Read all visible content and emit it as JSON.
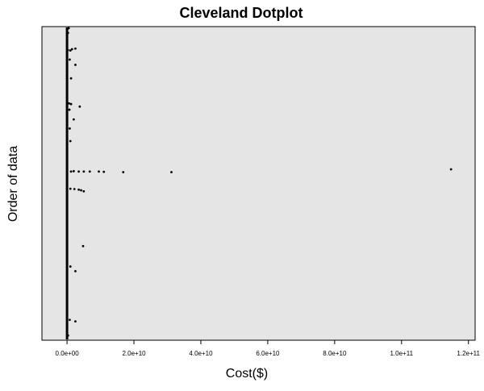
{
  "chart_data": {
    "type": "scatter",
    "title": "Cleveland Dotplot",
    "xlabel": "Cost($)",
    "ylabel": "Order of data",
    "xlim": [
      -7500000000.0,
      122000000000.0
    ],
    "ylim": [
      0,
      100
    ],
    "y_ticks_shown": false,
    "grid": false,
    "background_color": "#e5e5e5",
    "x_ticks": [
      {
        "value": 0,
        "label": "0.0e+00"
      },
      {
        "value": 20000000000.0,
        "label": "2.0e+10"
      },
      {
        "value": 40000000000.0,
        "label": "4.0e+10"
      },
      {
        "value": 60000000000.0,
        "label": "6.0e+10"
      },
      {
        "value": 80000000000.0,
        "label": "8.0e+10"
      },
      {
        "value": 100000000000.0,
        "label": "1.0e+11"
      },
      {
        "value": 120000000000.0,
        "label": "1.2e+11"
      }
    ],
    "series": [
      {
        "color": "#000000",
        "points": [
          {
            "x": 500000000.0,
            "y": 99.5
          },
          {
            "x": 300000000.0,
            "y": 98
          },
          {
            "x": 250000000.0,
            "y": 92.5
          },
          {
            "x": 1000000000.0,
            "y": 92.4
          },
          {
            "x": 2500000000.0,
            "y": 93.0
          },
          {
            "x": 1500000000.0,
            "y": 92.8
          },
          {
            "x": 800000000.0,
            "y": 89.5
          },
          {
            "x": 2500000000.0,
            "y": 87.8
          },
          {
            "x": 1200000000.0,
            "y": 83.5
          },
          {
            "x": 600000000.0,
            "y": 75.5
          },
          {
            "x": 1200000000.0,
            "y": 75.3
          },
          {
            "x": 700000000.0,
            "y": 73.5
          },
          {
            "x": 2000000000.0,
            "y": 70.4
          },
          {
            "x": 3800000000.0,
            "y": 74.5
          },
          {
            "x": 800000000.0,
            "y": 67.5
          },
          {
            "x": 1000000000.0,
            "y": 63.5
          },
          {
            "x": 1200000000.0,
            "y": 53.8
          },
          {
            "x": 2000000000.0,
            "y": 53.9
          },
          {
            "x": 3500000000.0,
            "y": 53.8
          },
          {
            "x": 5000000000.0,
            "y": 53.8
          },
          {
            "x": 6800000000.0,
            "y": 53.8
          },
          {
            "x": 9500000000.0,
            "y": 53.8
          },
          {
            "x": 11000000000.0,
            "y": 53.7
          },
          {
            "x": 16800000000.0,
            "y": 53.6
          },
          {
            "x": 31200000000.0,
            "y": 53.6
          },
          {
            "x": 114800000000.0,
            "y": 54.5
          },
          {
            "x": 1000000000.0,
            "y": 48.3
          },
          {
            "x": 2200000000.0,
            "y": 48.2
          },
          {
            "x": 3500000000.0,
            "y": 48.0
          },
          {
            "x": 4200000000.0,
            "y": 47.8
          },
          {
            "x": 5000000000.0,
            "y": 47.5
          },
          {
            "x": 4800000000.0,
            "y": 30.0
          },
          {
            "x": 1000000000.0,
            "y": 23.5
          },
          {
            "x": 2500000000.0,
            "y": 22.0
          },
          {
            "x": 800000000.0,
            "y": 6.5
          },
          {
            "x": 2500000000.0,
            "y": 6.0
          },
          {
            "x": 300000000.0,
            "y": 1.5
          }
        ]
      }
    ]
  }
}
